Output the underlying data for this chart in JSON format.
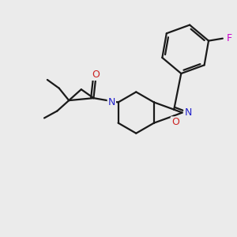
{
  "background_color": "#ebebeb",
  "bond_color": "#1a1a1a",
  "N_color": "#2222cc",
  "O_color": "#cc2222",
  "F_color": "#cc00cc",
  "figsize": [
    3.0,
    3.0
  ],
  "dpi": 100,
  "xlim": [
    0,
    10
  ],
  "ylim": [
    0,
    10
  ],
  "lw": 1.6,
  "fontsize": 9
}
